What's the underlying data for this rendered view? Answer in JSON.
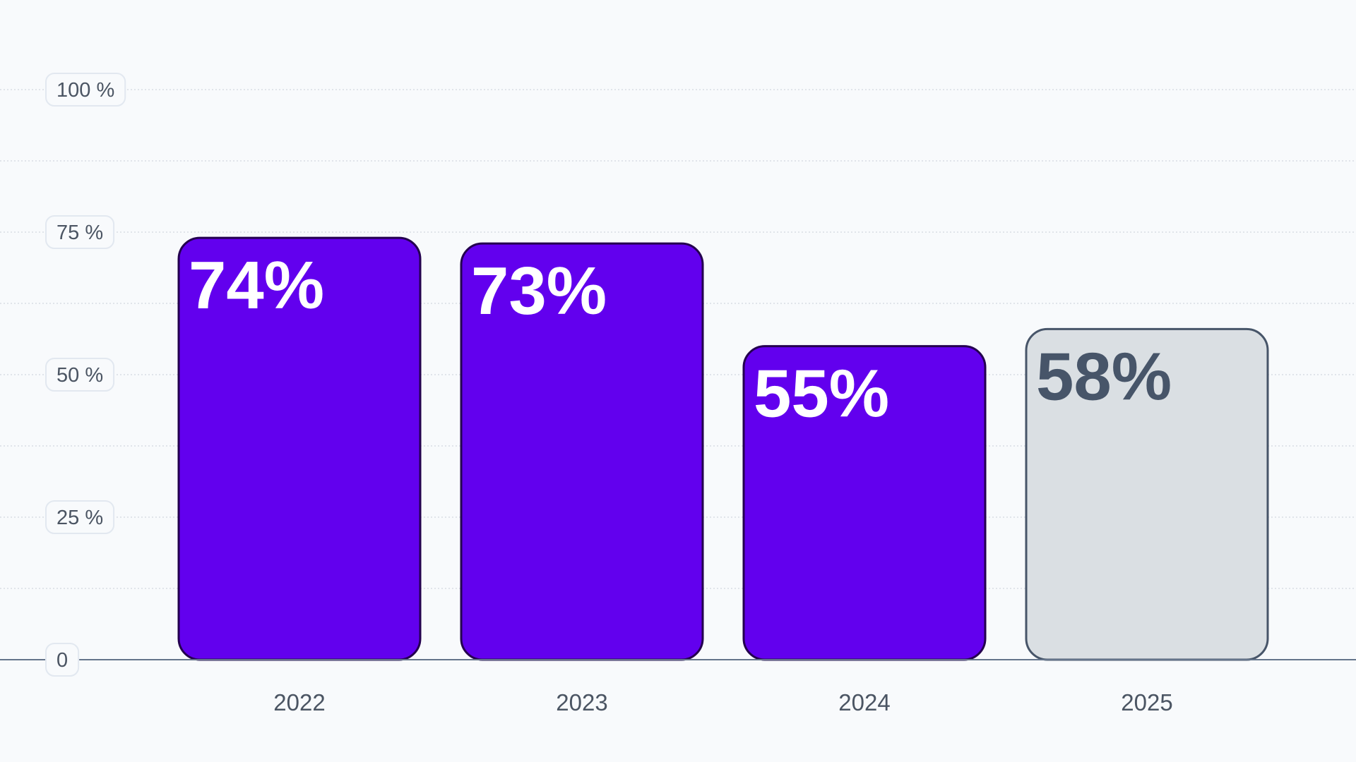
{
  "chart_data": {
    "type": "bar",
    "categories": [
      "2022",
      "2023",
      "2024",
      "2025"
    ],
    "values": [
      74,
      73,
      55,
      58
    ],
    "value_labels": [
      "74%",
      "73%",
      "55%",
      "58%"
    ],
    "ylim": [
      0,
      100
    ],
    "y_ticks": [
      {
        "value": 0,
        "label": "0"
      },
      {
        "value": 25,
        "label": "25 %"
      },
      {
        "value": 50,
        "label": "50 %"
      },
      {
        "value": 75,
        "label": "75 %"
      },
      {
        "value": 100,
        "label": "100 %"
      }
    ],
    "minor_grid_step": 12.5,
    "grid": true,
    "title": "",
    "xlabel": "",
    "ylabel": "",
    "colors": {
      "primary_fill": "#6200ee",
      "primary_stroke": "#24004f",
      "primary_label": "#ffffff",
      "highlight_fill": "#dadfe3",
      "highlight_stroke": "#475569",
      "highlight_label": "#475569",
      "background": "#f8fafc",
      "grid": "#d8dde4",
      "axis": "#64748b"
    },
    "bar_styles": [
      "primary",
      "primary",
      "primary",
      "highlight"
    ]
  }
}
